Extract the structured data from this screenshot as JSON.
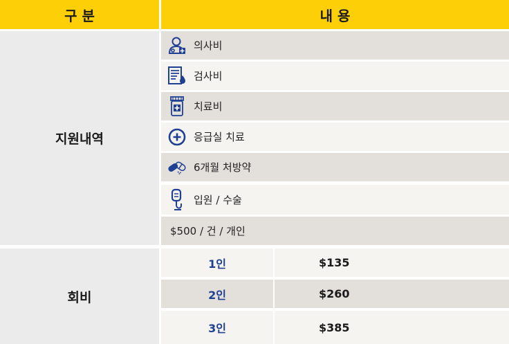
{
  "header": {
    "col1": "구 분",
    "col2": "내 용"
  },
  "support": {
    "label": "지원내역",
    "items": [
      {
        "label": "의사비",
        "icon": "doctor-icon"
      },
      {
        "label": "검사비",
        "icon": "test-report-icon"
      },
      {
        "label": "치료비",
        "icon": "medicine-bottle-icon"
      },
      {
        "label": "응급실 치료",
        "icon": "emergency-plus-icon"
      },
      {
        "label": "6개월 처방약",
        "icon": "pills-icon"
      },
      {
        "label": "입원 / 수술",
        "icon": "iv-drip-icon"
      }
    ],
    "limit": "$500 / 건 / 개인"
  },
  "fee": {
    "label": "회비",
    "rows": [
      {
        "people": "1인",
        "amount": "$135"
      },
      {
        "people": "2인",
        "amount": "$260"
      },
      {
        "people": "3인",
        "amount": "$385"
      }
    ]
  },
  "colors": {
    "header": "#fccf06",
    "icon": "#1f3f93",
    "people_text": "#1f3f93"
  }
}
